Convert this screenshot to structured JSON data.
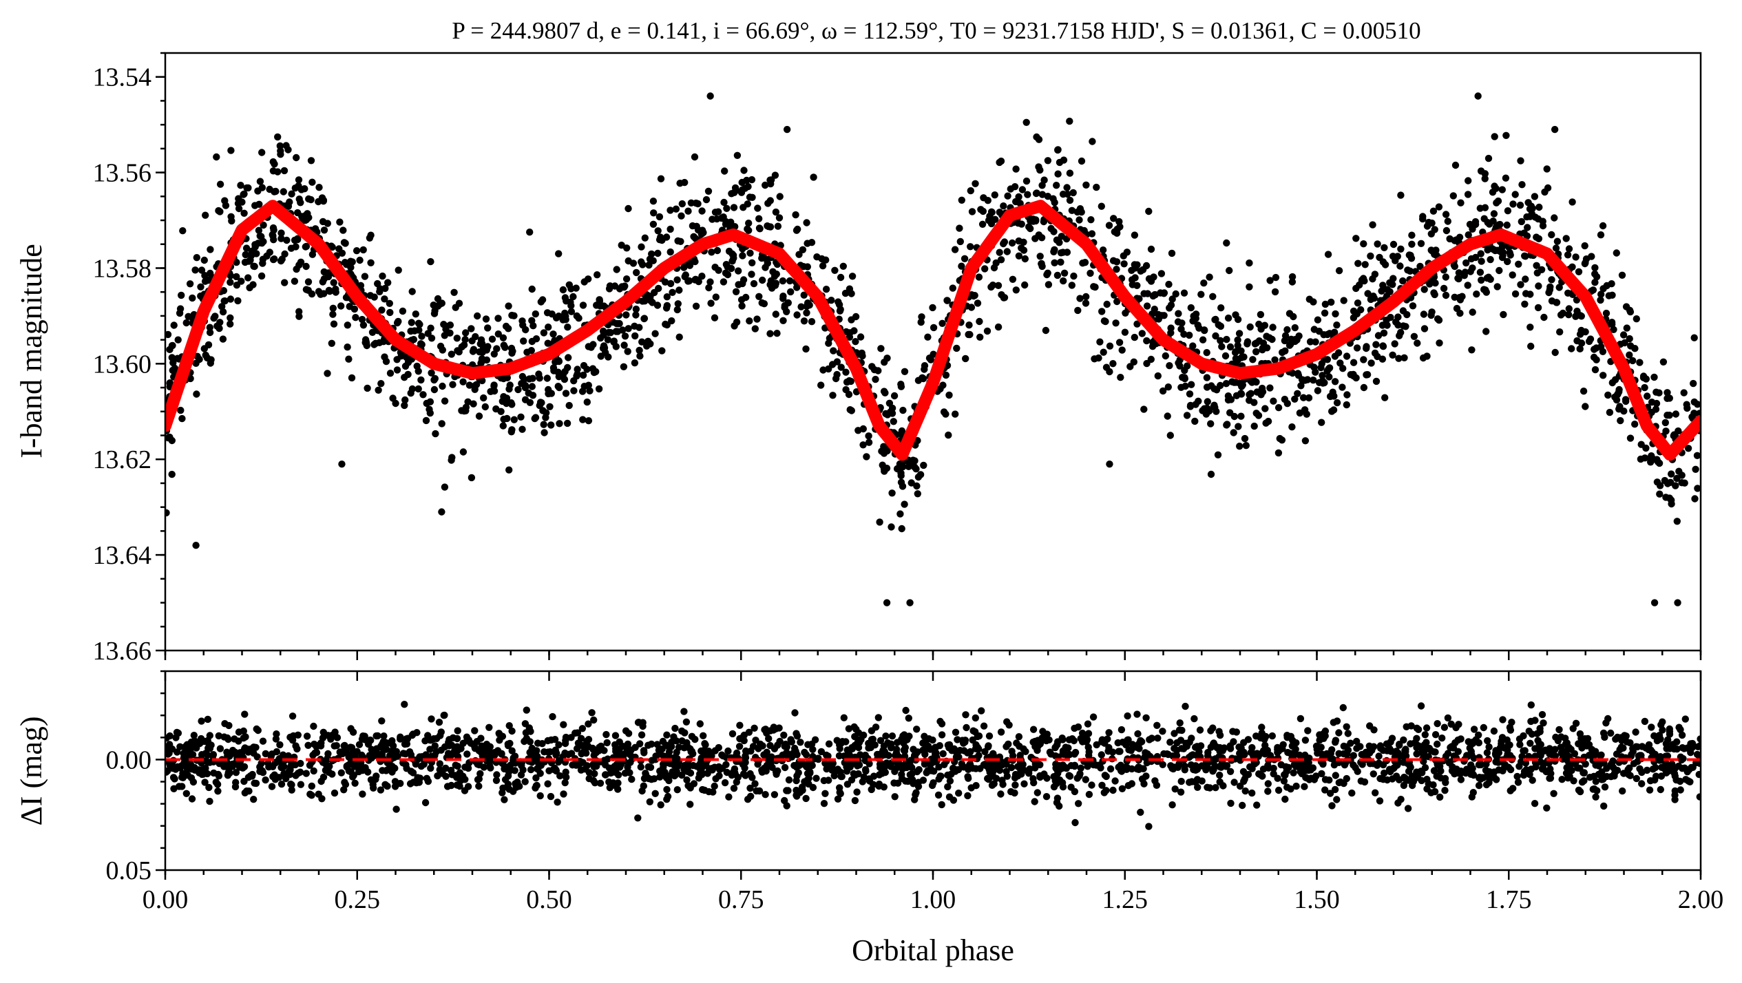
{
  "chart_data": [
    {
      "type": "scatter",
      "panel": "light-curve",
      "title": "P = 244.9807 d, e = 0.141, i = 66.69°, ω = 112.59°, T0 = 9231.7158 HJD', S = 0.01361, C = 0.00510",
      "xlabel": "Orbital phase",
      "ylabel": "I-band magnitude",
      "xlim": [
        0,
        2
      ],
      "ylim": [
        13.66,
        13.535
      ],
      "y_inverted": true,
      "xticks": [
        "0.00",
        "0.25",
        "0.50",
        "0.75",
        "1.00",
        "1.25",
        "1.50",
        "1.75",
        "2.00"
      ],
      "yticks": [
        "13.54",
        "13.56",
        "13.58",
        "13.60",
        "13.62",
        "13.64",
        "13.66"
      ],
      "grid": false,
      "series": [
        {
          "kind": "points",
          "color": "#000000",
          "x": [
            0.0,
            0.05,
            0.1,
            0.14,
            0.2,
            0.25,
            0.3,
            0.35,
            0.4,
            0.45,
            0.5,
            0.55,
            0.6,
            0.65,
            0.7,
            0.74,
            0.8,
            0.85,
            0.9,
            0.93,
            0.96,
            1.0,
            1.05,
            1.1,
            1.14,
            1.2,
            1.25,
            1.3,
            1.35,
            1.4,
            1.45,
            1.5,
            1.55,
            1.6,
            1.65,
            1.7,
            1.74,
            1.8,
            1.85,
            1.9,
            1.93,
            1.96,
            2.0
          ],
          "y": [
            13.61,
            13.588,
            13.574,
            13.567,
            13.575,
            13.586,
            13.595,
            13.6,
            13.602,
            13.601,
            13.598,
            13.593,
            13.587,
            13.58,
            13.575,
            13.573,
            13.577,
            13.586,
            13.6,
            13.612,
            13.62,
            13.605,
            13.58,
            13.57,
            13.567,
            13.575,
            13.586,
            13.595,
            13.6,
            13.602,
            13.601,
            13.598,
            13.593,
            13.587,
            13.58,
            13.575,
            13.573,
            13.577,
            13.586,
            13.6,
            13.612,
            13.62,
            13.609
          ],
          "scatter_mag": 0.008,
          "outliers": [
            {
              "x": 0.71,
              "y": 13.544
            },
            {
              "x": 0.81,
              "y": 13.551
            },
            {
              "x": 1.71,
              "y": 13.544
            },
            {
              "x": 1.81,
              "y": 13.551
            },
            {
              "x": 0.94,
              "y": 13.65
            },
            {
              "x": 0.97,
              "y": 13.65
            },
            {
              "x": 1.94,
              "y": 13.65
            },
            {
              "x": 1.97,
              "y": 13.65
            },
            {
              "x": 0.04,
              "y": 13.638
            },
            {
              "x": 0.23,
              "y": 13.621
            },
            {
              "x": 0.36,
              "y": 13.631
            },
            {
              "x": 1.23,
              "y": 13.621
            }
          ]
        },
        {
          "kind": "model",
          "color": "#ff0000",
          "x": [
            0.0,
            0.05,
            0.1,
            0.14,
            0.2,
            0.25,
            0.3,
            0.35,
            0.4,
            0.45,
            0.5,
            0.55,
            0.6,
            0.65,
            0.7,
            0.74,
            0.8,
            0.85,
            0.9,
            0.93,
            0.96,
            1.0,
            1.05,
            1.1,
            1.14,
            1.2,
            1.25,
            1.3,
            1.35,
            1.4,
            1.45,
            1.5,
            1.55,
            1.6,
            1.65,
            1.7,
            1.74,
            1.8,
            1.85,
            1.9,
            1.93,
            1.96,
            2.0
          ],
          "y": [
            13.613,
            13.589,
            13.572,
            13.567,
            13.575,
            13.586,
            13.595,
            13.6,
            13.602,
            13.601,
            13.598,
            13.593,
            13.587,
            13.58,
            13.575,
            13.573,
            13.577,
            13.586,
            13.601,
            13.613,
            13.619,
            13.604,
            13.58,
            13.569,
            13.567,
            13.575,
            13.586,
            13.595,
            13.6,
            13.602,
            13.601,
            13.598,
            13.593,
            13.587,
            13.58,
            13.575,
            13.573,
            13.577,
            13.586,
            13.601,
            13.613,
            13.619,
            13.612
          ]
        }
      ]
    },
    {
      "type": "scatter",
      "panel": "residuals",
      "xlabel": "Orbital phase",
      "ylabel": "ΔI (mag)",
      "xlim": [
        0,
        2
      ],
      "ylim": [
        0.05,
        -0.04
      ],
      "y_inverted": true,
      "xticks": [
        "0.00",
        "0.25",
        "0.50",
        "0.75",
        "1.00",
        "1.25",
        "1.50",
        "1.75",
        "2.00"
      ],
      "yticks": [
        "0.00",
        "0.05"
      ],
      "grid": false,
      "series": [
        {
          "kind": "points",
          "color": "#000000",
          "mean": 0.0,
          "scatter_mag": 0.008,
          "x_range": [
            0,
            2
          ]
        },
        {
          "kind": "zero-line",
          "color": "#ff0000",
          "style": "dashed",
          "y": 0.0
        }
      ]
    }
  ]
}
